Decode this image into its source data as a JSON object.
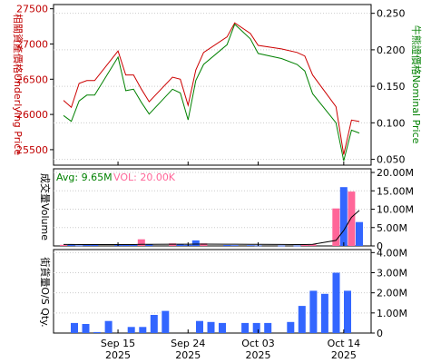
{
  "chart_data": [
    {
      "type": "line",
      "panel": "price",
      "x_dates": [
        "2025-09-08",
        "2025-09-09",
        "2025-09-10",
        "2025-09-11",
        "2025-09-12",
        "2025-09-15",
        "2025-09-16",
        "2025-09-17",
        "2025-09-18",
        "2025-09-19",
        "2025-09-22",
        "2025-09-23",
        "2025-09-24",
        "2025-09-25",
        "2025-09-26",
        "2025-09-29",
        "2025-09-30",
        "2025-10-02",
        "2025-10-03",
        "2025-10-06",
        "2025-10-08",
        "2025-10-09",
        "2025-10-10",
        "2025-10-13",
        "2025-10-14",
        "2025-10-15",
        "2025-10-16"
      ],
      "left_axis": {
        "label": "相關資產價格Underlying Price",
        "ticks": [
          25500,
          26000,
          26500,
          27000,
          27500
        ],
        "ylim": [
          25280,
          27560
        ]
      },
      "right_axis": {
        "label": "牛熊證價格Nominal Price",
        "ticks": [
          "0.050",
          "0.100",
          "0.150",
          "0.200",
          "0.250"
        ],
        "ylim": [
          0.042,
          0.262
        ]
      },
      "series": [
        {
          "axis": "left",
          "color": "#cc0000",
          "values": [
            26200,
            26100,
            26440,
            26480,
            26480,
            26900,
            26560,
            26560,
            26360,
            26180,
            26530,
            26500,
            26130,
            26630,
            26880,
            27100,
            27300,
            27150,
            26980,
            26930,
            26880,
            26830,
            26560,
            26110,
            25430,
            25920,
            25900
          ]
        },
        {
          "axis": "right",
          "color": "#008000",
          "values": [
            0.11,
            0.102,
            0.13,
            0.138,
            0.138,
            0.19,
            0.144,
            0.146,
            0.128,
            0.112,
            0.146,
            0.141,
            0.104,
            0.158,
            0.18,
            0.207,
            0.235,
            0.215,
            0.195,
            0.188,
            0.18,
            0.171,
            0.14,
            0.1,
            0.048,
            0.09,
            0.086
          ]
        }
      ]
    },
    {
      "type": "bar",
      "panel": "volume",
      "ylabel": "成交量Volume",
      "ticks": [
        "0",
        "5.00M",
        "10.00M",
        "15.00M",
        "20.00M"
      ],
      "ylim": [
        0,
        21000000
      ],
      "legend_avg": "Avg: 9.65M",
      "legend_vol": "VOL: 20.00K",
      "avg_color": "#008000",
      "vol_color": "#ff6699",
      "up_color": "#3366ff",
      "down_color": "#ff6699",
      "bars": [
        {
          "value": 300000,
          "dir": "down"
        },
        {
          "value": 400000,
          "dir": "up"
        },
        {
          "value": 150000,
          "dir": "up"
        },
        {
          "value": 300000,
          "dir": "up"
        },
        {
          "value": 350000,
          "dir": "up"
        },
        {
          "value": 400000,
          "dir": "up"
        },
        {
          "value": 300000,
          "dir": "up"
        },
        {
          "value": 500000,
          "dir": "up"
        },
        {
          "value": 1800000,
          "dir": "down"
        },
        {
          "value": 500000,
          "dir": "up"
        },
        {
          "value": 700000,
          "dir": "down"
        },
        {
          "value": 400000,
          "dir": "up"
        },
        {
          "value": 300000,
          "dir": "up"
        },
        {
          "value": 1500000,
          "dir": "up"
        },
        {
          "value": 700000,
          "dir": "down"
        },
        {
          "value": 250000,
          "dir": "up"
        },
        {
          "value": 200000,
          "dir": "up"
        },
        {
          "value": 200000,
          "dir": "up"
        },
        {
          "value": 150000,
          "dir": "up"
        },
        {
          "value": 100000,
          "dir": "up"
        },
        {
          "value": 100000,
          "dir": "up"
        },
        {
          "value": 400000,
          "dir": "down"
        },
        {
          "value": 500000,
          "dir": "down"
        },
        {
          "value": 10200000,
          "dir": "down"
        },
        {
          "value": 16000000,
          "dir": "up"
        },
        {
          "value": 14800000,
          "dir": "down"
        },
        {
          "value": 6500000,
          "dir": "up"
        }
      ],
      "avg_values": [
        400000,
        400000,
        380000,
        380000,
        380000,
        380000,
        380000,
        380000,
        420000,
        450000,
        480000,
        480000,
        460000,
        500000,
        500000,
        480000,
        460000,
        440000,
        420000,
        400000,
        380000,
        380000,
        420000,
        1500000,
        4200000,
        7800000,
        9650000
      ]
    },
    {
      "type": "bar",
      "panel": "outstanding",
      "ylabel": "街貨量O/S Qty.",
      "ticks": [
        "0",
        "1.00M",
        "2.00M",
        "3.00M",
        "4.00M"
      ],
      "ylim": [
        0,
        4150000
      ],
      "color": "#3366ff",
      "values": [
        500000,
        450000,
        50000,
        600000,
        0,
        300000,
        300000,
        900000,
        1100000,
        0,
        0,
        600000,
        550000,
        500000,
        0,
        500000,
        500000,
        500000,
        0,
        550000,
        1350000,
        2100000,
        1950000,
        3000000,
        2100000
      ]
    }
  ],
  "x_axis": {
    "ticks": [
      {
        "date": "2025-09-15",
        "label": "Sep 15",
        "year": "2025"
      },
      {
        "date": "2025-09-24",
        "label": "Sep 24",
        "year": "2025"
      },
      {
        "date": "2025-10-03",
        "label": "Oct 03",
        "year": "2025"
      },
      {
        "date": "2025-10-14",
        "label": "Oct 14",
        "year": "2025"
      }
    ]
  }
}
